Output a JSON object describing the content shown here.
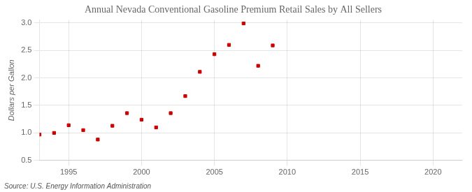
{
  "chart_data": {
    "type": "scatter",
    "title": "Annual Nevada Conventional Gasoline Premium Retail Sales by All Sellers",
    "ylabel": "Dollars per Gallon",
    "annotations": [
      "Source: U.S. Energy Information Administration"
    ],
    "x": [
      1993,
      1994,
      1995,
      1996,
      1997,
      1998,
      1999,
      2000,
      2001,
      2002,
      2003,
      2004,
      2005,
      2006,
      2007,
      2008,
      2009
    ],
    "values": [
      0.97,
      1.0,
      1.14,
      1.05,
      0.88,
      1.13,
      1.36,
      1.24,
      1.1,
      1.36,
      1.67,
      2.11,
      2.43,
      2.6,
      2.99,
      2.22,
      2.59
    ],
    "color": "#cc0000",
    "marker": "square",
    "xlim": [
      1993,
      2022
    ],
    "ylim": [
      0.5,
      3.05
    ],
    "xticks": [
      1995,
      2000,
      2005,
      2010,
      2015,
      2020
    ],
    "yticks": [
      0.5,
      {
        "value": 1.0,
        "label": "1.0"
      },
      1.5,
      {
        "value": 2.0,
        "label": "2.0"
      },
      2.5,
      {
        "value": 3.0,
        "label": "3.0"
      }
    ],
    "grid": true
  }
}
